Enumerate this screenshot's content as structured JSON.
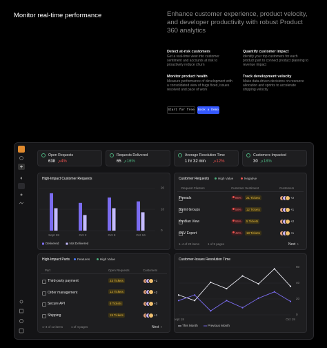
{
  "hero": {
    "title": "Monitor real-time performance",
    "headline": "Enhance customer experience, product velocity, and developer productivity with robust Product 360 analytics",
    "features": [
      {
        "title": "Detect at-risk customers",
        "text": "Get a real-time view into customer sentiment and accounts at risk to proactively reduce churn"
      },
      {
        "title": "Quantify customer impact",
        "text": "Identify your top customers for each product part to connect product planning to revenue impact"
      },
      {
        "title": "Monitor product health",
        "text": "Measure performance of development with a consolidated view of bugs fixed, issues resolved and pace of work"
      },
      {
        "title": "Track development velocity",
        "text": "Make data-driven decisions on resource allocation and sprints to accelerate shipping velocity"
      }
    ],
    "buttons": [
      "Start for free",
      "Book a Demo"
    ]
  },
  "dashboard": {
    "kpis": [
      {
        "label": "Open Requests",
        "value": 638,
        "change": "4%",
        "change_color": "#ef5350"
      },
      {
        "label": "Requests Delivered",
        "value": 65,
        "change": "16%",
        "change_color": "#4caf7d"
      },
      {
        "label": "Average Resolution Time",
        "value": "1 hr 32 min",
        "change": "12%",
        "change_color": "#ef5350"
      },
      {
        "label": "Customers Impacted",
        "value": 30,
        "change": "18%",
        "change_color": "#4caf7d"
      }
    ],
    "customer_requests": {
      "title": "Customer Requests",
      "tabs": [
        "High Value",
        "Negative"
      ],
      "columns": [
        "Request Clusters",
        "Customer Sentiment",
        "Customers"
      ],
      "rows": [
        {
          "name": "Threads",
          "sentiment": "86%",
          "tickets": "21 Tickets",
          "extra": "+2"
        },
        {
          "name": "Sprint Groups",
          "sentiment": "58%",
          "tickets": "12 Tickets",
          "extra": "+1"
        },
        {
          "name": "KanBan View",
          "sentiment": "96%",
          "tickets": "5 Tickets",
          "extra": "+2"
        },
        {
          "name": "CSV Export",
          "sentiment": "42%",
          "tickets": "18 Tickets",
          "extra": "+1"
        }
      ],
      "footer": {
        "range": "1–4 of 20 items",
        "pages": "1 of 5 pages",
        "next": "Next"
      }
    },
    "parts": {
      "title": "High-Impact Parts",
      "tabs": [
        "Features",
        "High Value"
      ],
      "columns": [
        "Part",
        "Open Requests",
        "Customers"
      ],
      "rows": [
        {
          "name": "Third-party payment",
          "tickets": "23 Tickets",
          "extra": "+1"
        },
        {
          "name": "Order management",
          "tickets": "12 Tickets",
          "extra": "+2"
        },
        {
          "name": "Secure API",
          "tickets": "8 Tickets",
          "extra": "+3"
        },
        {
          "name": "Shipping",
          "tickets": "19 Tickets",
          "extra": "+1"
        }
      ],
      "footer": {
        "range": "1–4 of 12 items",
        "pages": "1 of 4 pages",
        "next": "Next"
      }
    }
  },
  "chart_data": [
    {
      "type": "bar",
      "title": "High-Impact Customer Requests",
      "categories": [
        "Sept 28",
        "Oct 2",
        "Oct 8",
        "Oct 16"
      ],
      "series": [
        {
          "name": "Delivered",
          "color": "#7b6cf0",
          "values": [
            17.5,
            13,
            15.5,
            13.7
          ]
        },
        {
          "name": "Not Delivered",
          "color": "#c4baff",
          "values": [
            10.5,
            7.3,
            10.5,
            8.6
          ]
        }
      ],
      "ylim": [
        0,
        22
      ],
      "yticks": [
        0,
        10,
        20
      ],
      "grid": true
    },
    {
      "type": "line",
      "title": "Customer-Issues Resolution Time",
      "categories": [
        "Sept 18",
        null,
        null,
        null,
        null,
        null,
        null,
        "Oct 19"
      ],
      "series": [
        {
          "name": "This Month",
          "color": "#e8e8f0",
          "values": [
            25,
            18,
            41,
            33,
            49,
            39,
            58,
            36
          ]
        },
        {
          "name": "Previous Month",
          "color": "#7b6cf0",
          "values": [
            18,
            25,
            5,
            18,
            9,
            21,
            29,
            17
          ]
        }
      ],
      "ylim": [
        0,
        60
      ],
      "yticks": [
        0,
        20,
        40,
        60
      ],
      "grid": true
    }
  ]
}
